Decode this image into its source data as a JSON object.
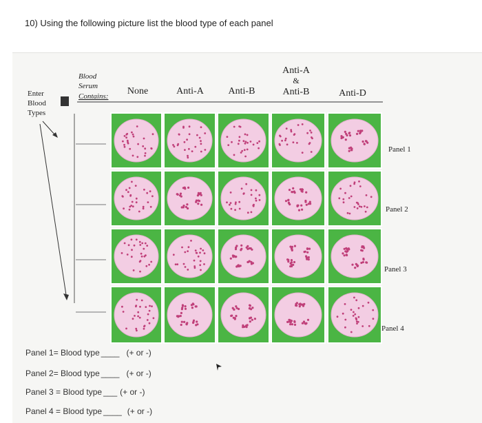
{
  "question": "10) Using the following picture list the blood type of each panel",
  "serum_label": [
    "Blood",
    "Serum",
    "Contains:"
  ],
  "enter_label": [
    "Enter",
    "Blood",
    "Types"
  ],
  "columns": [
    "None",
    "Anti-A",
    "Anti-B",
    "Anti-A & Anti-B",
    "Anti-D"
  ],
  "column_ab_parts": [
    "Anti-A",
    "&",
    "Anti-B"
  ],
  "panel_labels": [
    "Panel 1",
    "Panel 2",
    "Panel 3",
    "Panel 4"
  ],
  "agglutination": [
    [
      false,
      false,
      false,
      false,
      true
    ],
    [
      false,
      true,
      false,
      true,
      false
    ],
    [
      false,
      false,
      true,
      true,
      true
    ],
    [
      false,
      true,
      true,
      true,
      false
    ]
  ],
  "answers": [
    {
      "prefix": "Panel 1= Blood type",
      "blank": "____",
      "suffix": "(+ or -)"
    },
    {
      "prefix": "Panel 2= Blood type",
      "blank": "____",
      "suffix": "(+ or -)"
    },
    {
      "prefix": "Panel 3 = Blood type",
      "blank": "___",
      "suffix": "(+ or -)"
    },
    {
      "prefix": "Panel 4 = Blood type",
      "blank": "____",
      "suffix": "(+ or -)"
    }
  ],
  "colors": {
    "green": "#4bb544",
    "well": "#f3cde3",
    "dot": "#c0407a",
    "grid_line": "#ffffff"
  }
}
